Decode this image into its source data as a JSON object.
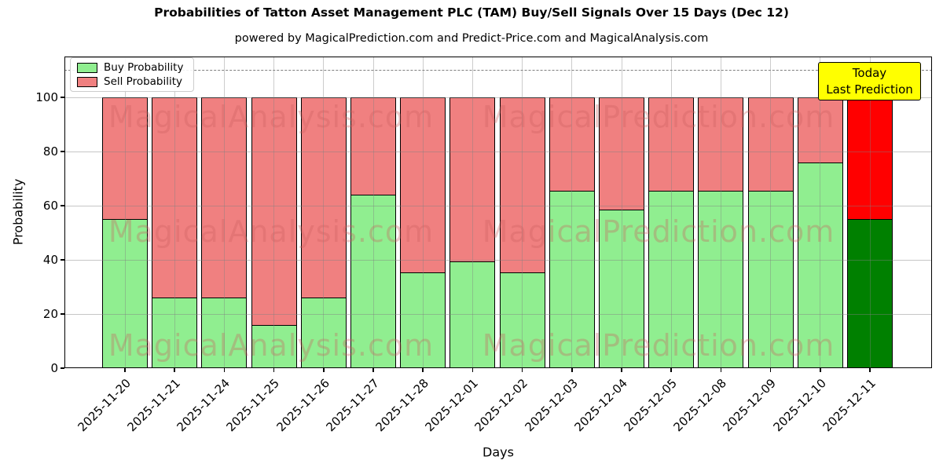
{
  "title": "Probabilities of Tatton Asset Management PLC (TAM) Buy/Sell Signals Over 15 Days (Dec 12)",
  "subtitle": "powered by MagicalPrediction.com and Predict-Price.com and MagicalAnalysis.com",
  "legend": {
    "buy_label": "Buy Probability",
    "sell_label": "Sell Probability"
  },
  "annotation": {
    "line1": "Today",
    "line2": "Last Prediction"
  },
  "watermarks": {
    "left_text": "MagicalAnalysis.com",
    "right_text": "MagicalPrediction.com"
  },
  "colors": {
    "buy": "#90ee90",
    "sell": "#f08080",
    "last_buy": "#008000",
    "last_sell": "#ff0000",
    "bar_edge": "#000000",
    "annotation_bg": "#ffff00",
    "dashed_line": "#7f7f7f",
    "grid": "#808080"
  },
  "chart_data": {
    "type": "bar",
    "stacked": true,
    "title": "Probabilities of Tatton Asset Management PLC (TAM) Buy/Sell Signals Over 15 Days (Dec 12)",
    "xlabel": "Days",
    "ylabel": "Probability",
    "categories": [
      "2025-11-20",
      "2025-11-21",
      "2025-11-24",
      "2025-11-25",
      "2025-11-26",
      "2025-11-27",
      "2025-11-28",
      "2025-12-01",
      "2025-12-02",
      "2025-12-03",
      "2025-12-04",
      "2025-12-05",
      "2025-12-08",
      "2025-12-09",
      "2025-12-10",
      "2025-12-11"
    ],
    "series": [
      {
        "name": "Buy Probability",
        "values": [
          55,
          26,
          26,
          16,
          26,
          64,
          35.5,
          39.5,
          35.5,
          65.5,
          58.5,
          65.5,
          65.5,
          65.5,
          76,
          55
        ]
      },
      {
        "name": "Sell Probability",
        "values": [
          45,
          74,
          74,
          84,
          74,
          36,
          64.5,
          60.5,
          64.5,
          34.5,
          41.5,
          34.5,
          34.5,
          34.5,
          24,
          45
        ]
      }
    ],
    "bar_total": 100,
    "highlighted_last_bar": true,
    "yticks": [
      0,
      20,
      40,
      60,
      80,
      100
    ],
    "ylim": [
      0,
      115
    ],
    "dashed_line_y": 110,
    "grid": true,
    "legend_position": "upper left"
  }
}
